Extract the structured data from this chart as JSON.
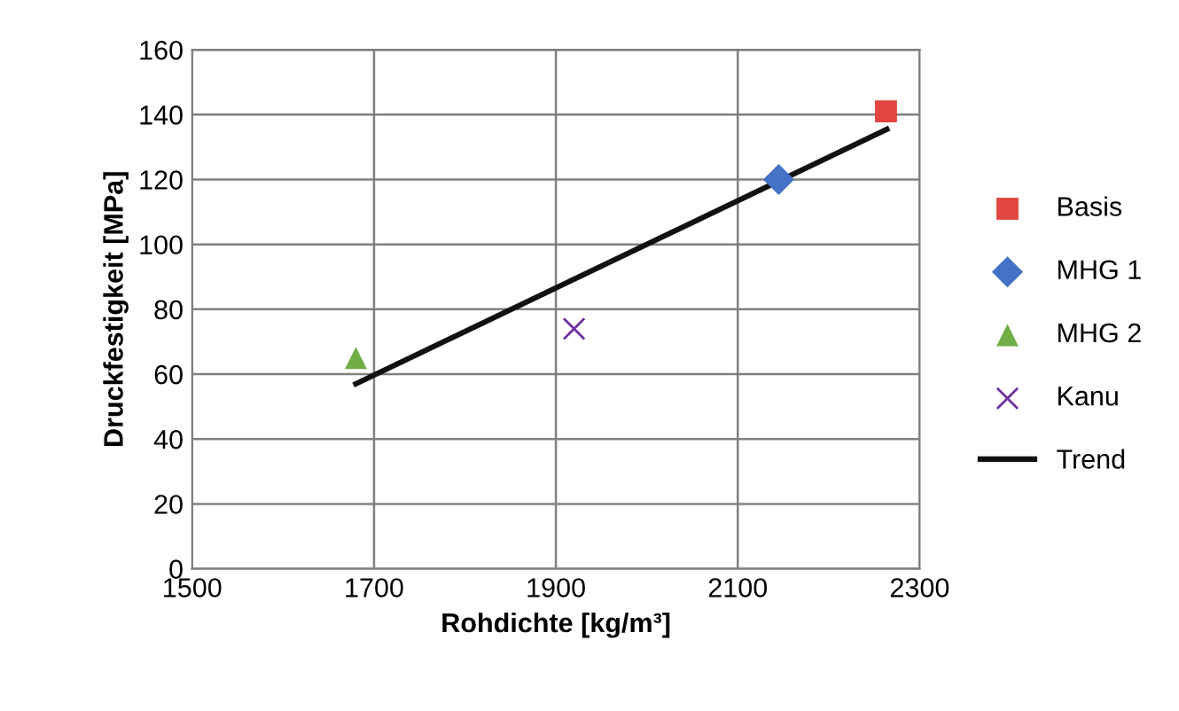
{
  "chart_data": {
    "type": "scatter",
    "xlabel": "Rohdichte [kg/m³]",
    "ylabel": "Druckfestigkeit [MPa]",
    "series": [
      {
        "name": "Basis",
        "color": "#e0463f",
        "marker": "square",
        "x": [
          2263
        ],
        "values": [
          141
        ]
      },
      {
        "name": "MHG 1",
        "color": "#4472c4",
        "marker": "diamond",
        "x": [
          2145
        ],
        "values": [
          120
        ]
      },
      {
        "name": "MHG 2",
        "color": "#70ad47",
        "marker": "triangle",
        "x": [
          1680
        ],
        "values": [
          65
        ]
      },
      {
        "name": "Kanu",
        "color": "#7030a0",
        "marker": "cross",
        "x": [
          1920
        ],
        "values": [
          74
        ]
      },
      {
        "name": "Trend",
        "type": "line",
        "color": "#111111",
        "marker": "none",
        "line_style": "solid",
        "x": [
          1680,
          2264
        ],
        "values": [
          57,
          135.5
        ]
      }
    ],
    "xlim": [
      1500,
      2300
    ],
    "xticks": [
      1500,
      1700,
      1900,
      2100,
      2300
    ],
    "ylim": [
      0,
      160
    ],
    "yticks": [
      0,
      20,
      40,
      60,
      80,
      100,
      120,
      140,
      160
    ],
    "grid": true,
    "legend": "right"
  }
}
